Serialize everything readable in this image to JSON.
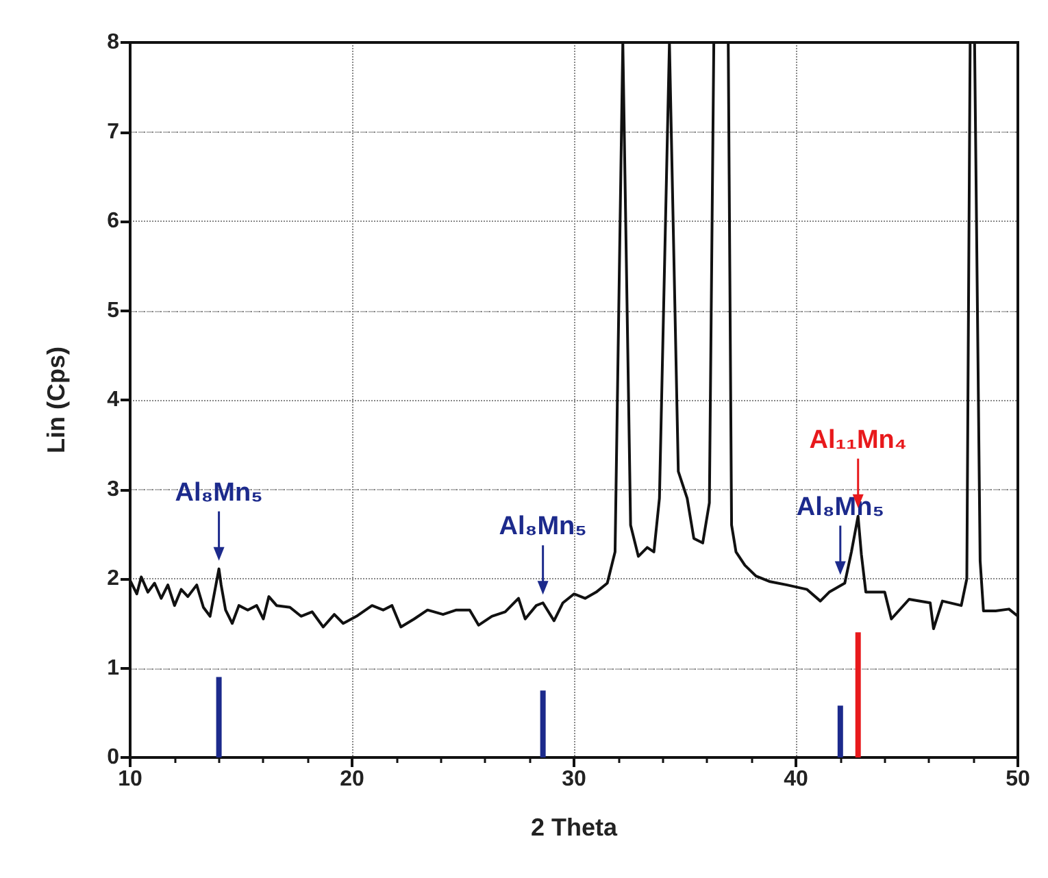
{
  "chart_data": {
    "type": "line",
    "xlabel": "2 Theta",
    "ylabel": "Lin (Cps)",
    "xlim": [
      10,
      50
    ],
    "ylim": [
      0,
      8
    ],
    "xticks": [
      10,
      20,
      30,
      40,
      50
    ],
    "yticks": [
      0,
      1,
      2,
      3,
      4,
      5,
      6,
      7,
      8
    ],
    "grid": true,
    "marker": "none",
    "line_style": "solid",
    "series": [
      {
        "color": "#111111",
        "x": [
          10,
          10.3,
          10.5,
          10.8,
          11.1,
          11.4,
          11.7,
          12.0,
          12.3,
          12.6,
          13.0,
          13.3,
          13.6,
          14.0,
          14.1,
          14.3,
          14.6,
          14.9,
          15.3,
          15.7,
          16.0,
          16.25,
          16.6,
          17.2,
          17.7,
          18.2,
          18.7,
          19.2,
          19.6,
          20.2,
          20.9,
          21.4,
          21.8,
          22.2,
          22.8,
          23.4,
          24.1,
          24.7,
          25.3,
          25.7,
          26.3,
          26.9,
          27.5,
          27.8,
          28.3,
          28.6,
          29.1,
          29.5,
          30.0,
          30.5,
          31.0,
          31.5,
          31.85,
          32.2,
          32.55,
          32.9,
          33.3,
          33.6,
          33.85,
          34.3,
          34.7,
          35.1,
          35.4,
          35.8,
          36.1,
          36.3,
          36.6,
          36.95,
          37.1,
          37.3,
          37.7,
          38.2,
          38.8,
          39.6,
          40.5,
          41.1,
          41.5,
          42.2,
          42.5,
          42.8,
          42.95,
          43.15,
          44.0,
          44.3,
          45.1,
          46.05,
          46.2,
          46.6,
          47.45,
          47.7,
          47.85,
          48.05,
          48.3,
          48.45,
          49.0,
          49.6,
          50.0
        ],
        "values": [
          1.98,
          1.83,
          2.02,
          1.85,
          1.95,
          1.78,
          1.93,
          1.7,
          1.88,
          1.8,
          1.93,
          1.68,
          1.58,
          2.11,
          1.93,
          1.65,
          1.5,
          1.7,
          1.65,
          1.7,
          1.55,
          1.8,
          1.7,
          1.68,
          1.58,
          1.63,
          1.46,
          1.6,
          1.5,
          1.58,
          1.7,
          1.65,
          1.7,
          1.46,
          1.55,
          1.65,
          1.6,
          1.65,
          1.65,
          1.48,
          1.58,
          1.63,
          1.78,
          1.55,
          1.7,
          1.73,
          1.53,
          1.73,
          1.83,
          1.78,
          1.85,
          1.95,
          2.3,
          8,
          2.6,
          2.25,
          2.35,
          2.3,
          2.9,
          8,
          3.2,
          2.9,
          2.45,
          2.4,
          2.85,
          8,
          8,
          8,
          2.6,
          2.3,
          2.15,
          2.03,
          1.97,
          1.93,
          1.88,
          1.75,
          1.85,
          1.95,
          2.3,
          2.7,
          2.27,
          1.85,
          1.85,
          1.55,
          1.77,
          1.73,
          1.44,
          1.75,
          1.7,
          2.0,
          8,
          8,
          2.2,
          1.64,
          1.64,
          1.66,
          1.58
        ]
      },
      {
        "type": "bar",
        "color": "#1c2a8c",
        "x": [
          14.0,
          28.6,
          42.0
        ],
        "values": [
          0.9,
          0.75,
          0.58
        ]
      },
      {
        "type": "bar",
        "color": "#e8191c",
        "x": [
          42.8
        ],
        "values": [
          1.4
        ]
      }
    ],
    "annotations": [
      {
        "text": "Al₈Mn₅",
        "x": 14.0,
        "y": 2.11
      },
      {
        "text": "Al₈Mn₅",
        "x": 28.6,
        "y": 1.73
      },
      {
        "text": "Al₈Mn₅",
        "x": 42.0,
        "y": 1.95
      },
      {
        "text": "Al₁₁Mn₄",
        "x": 42.8,
        "y": 2.7
      }
    ]
  }
}
